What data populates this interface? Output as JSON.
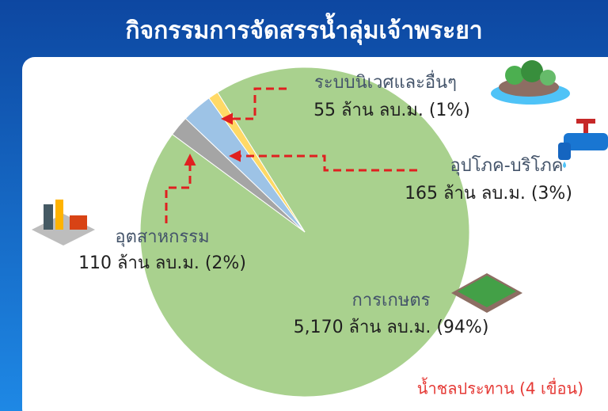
{
  "chart_data": {
    "type": "pie",
    "title": "กิจกรรมการจัดสรรน้ำลุ่มเจ้าพระยา",
    "categories": [
      "การเกษตร",
      "อุตสาหกรรม",
      "อุปโภค-บริโภค",
      "ระบบนิเวศและอื่นๆ"
    ],
    "values": [
      5170,
      110,
      165,
      55
    ],
    "value_labels": [
      "5,170 ล้าน ลบ.ม. (94%)",
      "110 ล้าน ลบ.ม. (2%)",
      "165 ล้าน ลบ.ม. (3%)",
      "55 ล้าน ลบ.ม. (1%)"
    ],
    "colors": [
      "#a9d18e",
      "#a5a5a5",
      "#9dc3e6",
      "#ffd966"
    ],
    "note": "น้ำชลประทาน (4 เขื่อน)"
  }
}
